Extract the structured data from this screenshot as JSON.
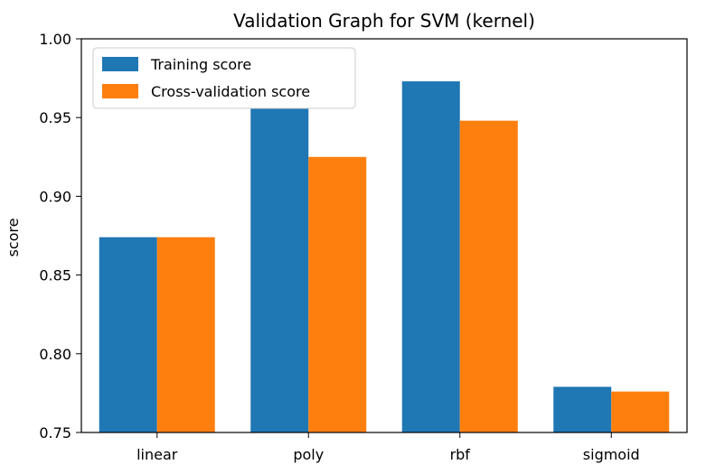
{
  "chart_data": {
    "type": "bar",
    "title": "Validation Graph for SVM (kernel)",
    "xlabel": "",
    "ylabel": "score",
    "categories": [
      "linear",
      "poly",
      "rbf",
      "sigmoid"
    ],
    "series": [
      {
        "name": "Training score",
        "color": "#1f77b4",
        "values": [
          0.874,
          0.956,
          0.973,
          0.779
        ]
      },
      {
        "name": "Cross-validation score",
        "color": "#ff7f0e",
        "values": [
          0.874,
          0.925,
          0.948,
          0.776
        ]
      }
    ],
    "ylim": [
      0.75,
      1.0
    ],
    "yticks": [
      "0.75",
      "0.80",
      "0.85",
      "0.90",
      "0.95",
      "1.00"
    ],
    "legend": "top-left",
    "grid": false
  }
}
